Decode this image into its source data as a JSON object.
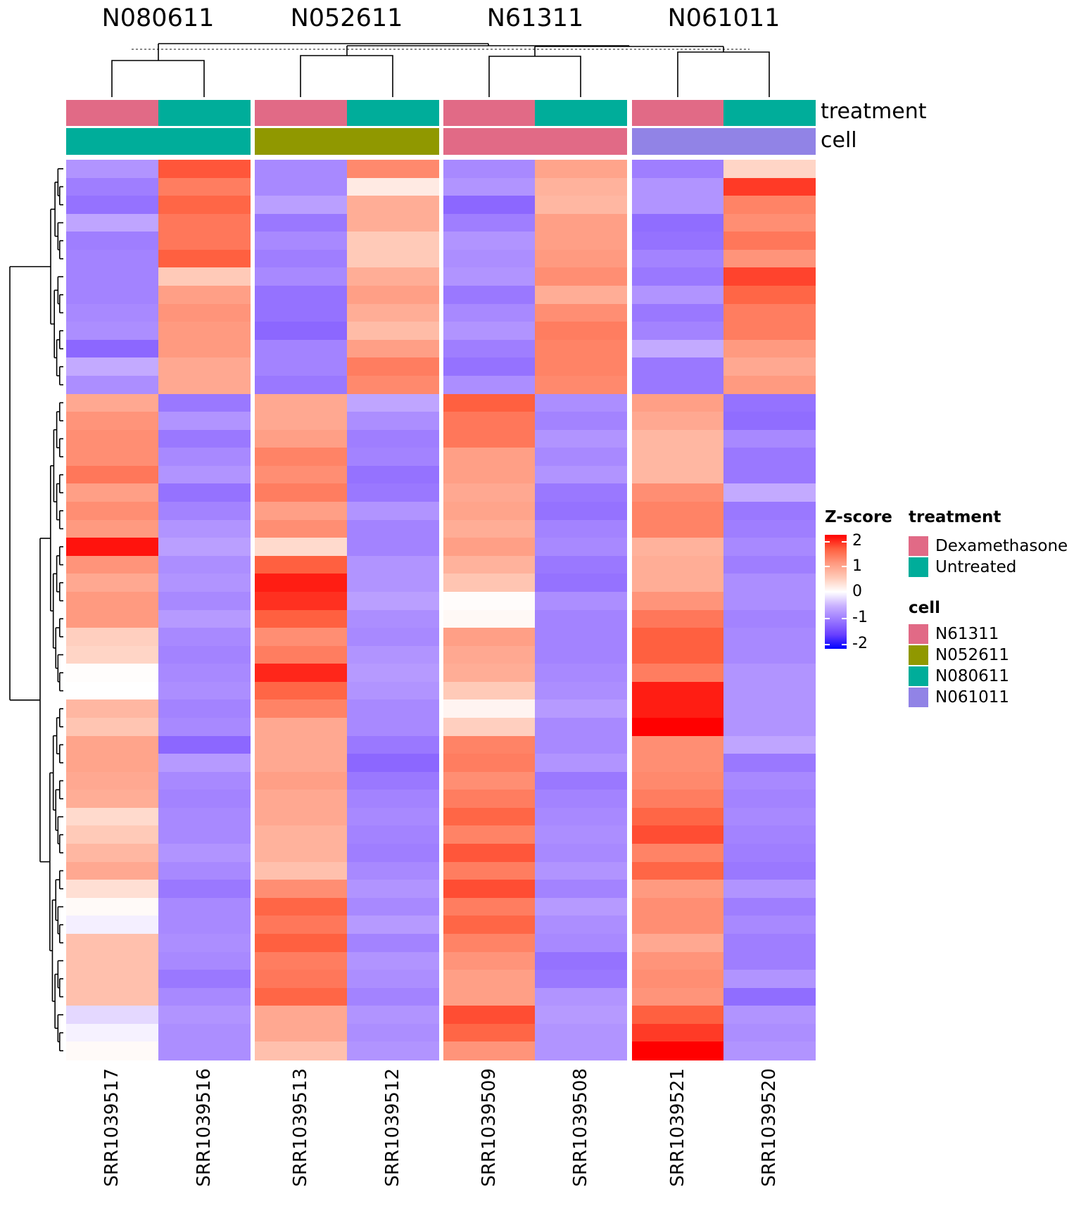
{
  "slices": [
    {
      "title": "N080611"
    },
    {
      "title": "N052611"
    },
    {
      "title": "N61311"
    },
    {
      "title": "N061011"
    }
  ],
  "annotation_labels": {
    "treatment": "treatment",
    "cell": "cell"
  },
  "legend": {
    "zscore": {
      "title": "Z-score",
      "ticks": [
        "2",
        "1",
        "0",
        "-1",
        "-2"
      ]
    },
    "treatment": {
      "title": "treatment",
      "items": [
        {
          "label": "Dexamethasone",
          "color": "#E16A86"
        },
        {
          "label": "Untreated",
          "color": "#00AD9A"
        }
      ]
    },
    "cell": {
      "title": "cell",
      "items": [
        {
          "label": "N61311",
          "color": "#E16A86"
        },
        {
          "label": "N052611",
          "color": "#909800"
        },
        {
          "label": "N080611",
          "color": "#00AD9A"
        },
        {
          "label": "N061011",
          "color": "#9183E6"
        }
      ]
    }
  },
  "chart_data": {
    "type": "heatmap",
    "title": "",
    "color_scale": {
      "name": "Z-score",
      "range": [
        -2,
        2
      ],
      "colors": {
        "-2": "#0000FF",
        "0": "#FFFFFF",
        "2": "#FF0000"
      }
    },
    "columns": [
      "SRR1039517",
      "SRR1039516",
      "SRR1039513",
      "SRR1039512",
      "SRR1039509",
      "SRR1039508",
      "SRR1039521",
      "SRR1039520"
    ],
    "column_slice": [
      "N080611",
      "N080611",
      "N052611",
      "N052611",
      "N61311",
      "N61311",
      "N061011",
      "N061011"
    ],
    "column_treatment": [
      "Dexamethasone",
      "Untreated",
      "Dexamethasone",
      "Untreated",
      "Dexamethasone",
      "Untreated",
      "Dexamethasone",
      "Untreated"
    ],
    "treatment_colors": {
      "Dexamethasone": "#E16A86",
      "Untreated": "#00AD9A"
    },
    "cell_colors": {
      "N61311": "#E16A86",
      "N052611": "#909800",
      "N080611": "#00AD9A",
      "N061011": "#9183E6"
    },
    "row_count": 50,
    "values": [
      [
        -0.75,
        1.55,
        -0.85,
        1.15,
        -0.85,
        0.9,
        -0.95,
        0.4
      ],
      [
        -0.95,
        1.25,
        -0.85,
        0.2,
        -0.75,
        0.75,
        -0.75,
        1.7
      ],
      [
        -1.05,
        1.45,
        -0.65,
        0.8,
        -1.15,
        0.7,
        -0.75,
        1.2
      ],
      [
        -0.6,
        1.3,
        -1.0,
        0.8,
        -0.95,
        0.95,
        -1.1,
        1.1
      ],
      [
        -0.95,
        1.3,
        -0.85,
        0.5,
        -0.75,
        0.95,
        -1.05,
        1.3
      ],
      [
        -0.9,
        1.5,
        -0.95,
        0.5,
        -0.8,
        1.0,
        -0.9,
        1.05
      ],
      [
        -0.9,
        0.5,
        -0.85,
        0.8,
        -0.75,
        1.1,
        -1.0,
        1.65
      ],
      [
        -0.9,
        0.95,
        -1.05,
        0.95,
        -1.0,
        0.8,
        -0.75,
        1.45
      ],
      [
        -0.85,
        1.05,
        -1.05,
        0.8,
        -0.85,
        1.1,
        -1.0,
        1.25
      ],
      [
        -0.8,
        1.0,
        -1.15,
        0.65,
        -0.75,
        1.25,
        -0.9,
        1.25
      ],
      [
        -1.15,
        1.0,
        -0.9,
        0.95,
        -0.95,
        1.2,
        -0.55,
        1.0
      ],
      [
        -0.55,
        0.85,
        -0.9,
        1.25,
        -1.05,
        1.2,
        -1.0,
        0.85
      ],
      [
        -0.8,
        0.85,
        -1.0,
        1.15,
        -0.8,
        1.15,
        -1.0,
        1.0
      ],
      [
        0.85,
        -1.0,
        0.85,
        -0.6,
        1.5,
        -0.8,
        0.95,
        -1.05
      ],
      [
        1.05,
        -0.75,
        0.85,
        -0.8,
        1.3,
        -0.9,
        0.85,
        -1.1
      ],
      [
        1.1,
        -1.0,
        0.95,
        -0.95,
        1.3,
        -0.75,
        0.7,
        -0.85
      ],
      [
        1.1,
        -0.85,
        1.2,
        -0.9,
        0.95,
        -0.85,
        0.7,
        -1.0
      ],
      [
        1.3,
        -0.75,
        1.1,
        -1.05,
        0.95,
        -0.75,
        0.7,
        -1.0
      ],
      [
        0.95,
        -1.05,
        1.25,
        -1.0,
        0.85,
        -1.0,
        1.1,
        -0.55
      ],
      [
        1.1,
        -0.9,
        0.95,
        -0.75,
        0.9,
        -1.05,
        1.2,
        -1.0
      ],
      [
        1.0,
        -0.75,
        1.1,
        -0.9,
        0.8,
        -0.9,
        1.2,
        -0.95
      ],
      [
        1.9,
        -0.65,
        0.35,
        -0.9,
        0.95,
        -0.85,
        0.75,
        -0.85
      ],
      [
        1.05,
        -0.8,
        1.5,
        -0.75,
        0.75,
        -1.0,
        0.8,
        -0.95
      ],
      [
        0.85,
        -0.75,
        1.85,
        -0.75,
        0.55,
        -1.05,
        0.8,
        -0.8
      ],
      [
        1.0,
        -0.85,
        1.75,
        -0.65,
        0.03,
        -0.8,
        1.05,
        -0.8
      ],
      [
        1.0,
        -0.7,
        1.5,
        -0.8,
        0.06,
        -0.9,
        1.3,
        -0.9
      ],
      [
        0.45,
        -0.85,
        1.1,
        -0.85,
        0.95,
        -0.9,
        1.5,
        -0.85
      ],
      [
        0.4,
        -0.9,
        1.25,
        -0.75,
        0.85,
        -0.9,
        1.5,
        -0.85
      ],
      [
        0.02,
        -0.85,
        1.8,
        -0.7,
        0.8,
        -0.85,
        1.25,
        -0.75
      ],
      [
        0.0,
        -0.8,
        1.45,
        -0.75,
        0.5,
        -0.8,
        1.85,
        -0.75
      ],
      [
        0.7,
        -0.9,
        1.2,
        -0.85,
        0.1,
        -0.7,
        1.85,
        -0.75
      ],
      [
        0.55,
        -0.85,
        0.85,
        -0.85,
        0.45,
        -0.85,
        2.2,
        -0.75
      ],
      [
        0.9,
        -1.15,
        0.85,
        -1.0,
        1.2,
        -0.85,
        1.1,
        -0.6
      ],
      [
        0.9,
        -0.7,
        0.85,
        -1.15,
        1.25,
        -0.75,
        1.1,
        -1.0
      ],
      [
        0.85,
        -0.85,
        0.95,
        -1.0,
        1.1,
        -1.0,
        1.15,
        -0.85
      ],
      [
        0.8,
        -0.9,
        0.85,
        -0.9,
        1.25,
        -0.9,
        1.25,
        -0.9
      ],
      [
        0.35,
        -0.85,
        0.85,
        -0.85,
        1.45,
        -0.85,
        1.45,
        -0.85
      ],
      [
        0.5,
        -0.85,
        0.75,
        -0.9,
        1.2,
        -0.8,
        1.6,
        -0.9
      ],
      [
        0.7,
        -0.75,
        0.75,
        -0.95,
        1.55,
        -0.85,
        1.2,
        -0.95
      ],
      [
        0.85,
        -0.85,
        0.6,
        -0.85,
        1.25,
        -0.75,
        1.45,
        -1.0
      ],
      [
        0.3,
        -1.0,
        1.1,
        -0.75,
        1.6,
        -0.9,
        1.0,
        -0.75
      ],
      [
        0.05,
        -0.85,
        1.45,
        -0.85,
        1.25,
        -0.7,
        1.1,
        -0.95
      ],
      [
        -0.1,
        -0.85,
        1.3,
        -0.7,
        1.45,
        -0.8,
        1.1,
        -0.85
      ],
      [
        0.6,
        -0.8,
        1.5,
        -0.9,
        1.2,
        -0.85,
        0.85,
        -0.95
      ],
      [
        0.6,
        -0.85,
        1.25,
        -0.75,
        1.05,
        -1.05,
        1.05,
        -0.95
      ],
      [
        0.6,
        -1.0,
        1.3,
        -0.8,
        0.95,
        -1.0,
        1.1,
        -0.75
      ],
      [
        0.6,
        -0.85,
        1.45,
        -0.9,
        0.95,
        -0.75,
        1.05,
        -1.1
      ],
      [
        -0.25,
        -0.75,
        0.85,
        -0.75,
        1.6,
        -0.7,
        1.5,
        -0.75
      ],
      [
        -0.08,
        -0.8,
        0.85,
        -0.8,
        1.45,
        -0.75,
        1.7,
        -0.8
      ],
      [
        0.05,
        -0.8,
        0.6,
        -0.75,
        1.05,
        -0.75,
        2.3,
        -0.75
      ]
    ]
  }
}
